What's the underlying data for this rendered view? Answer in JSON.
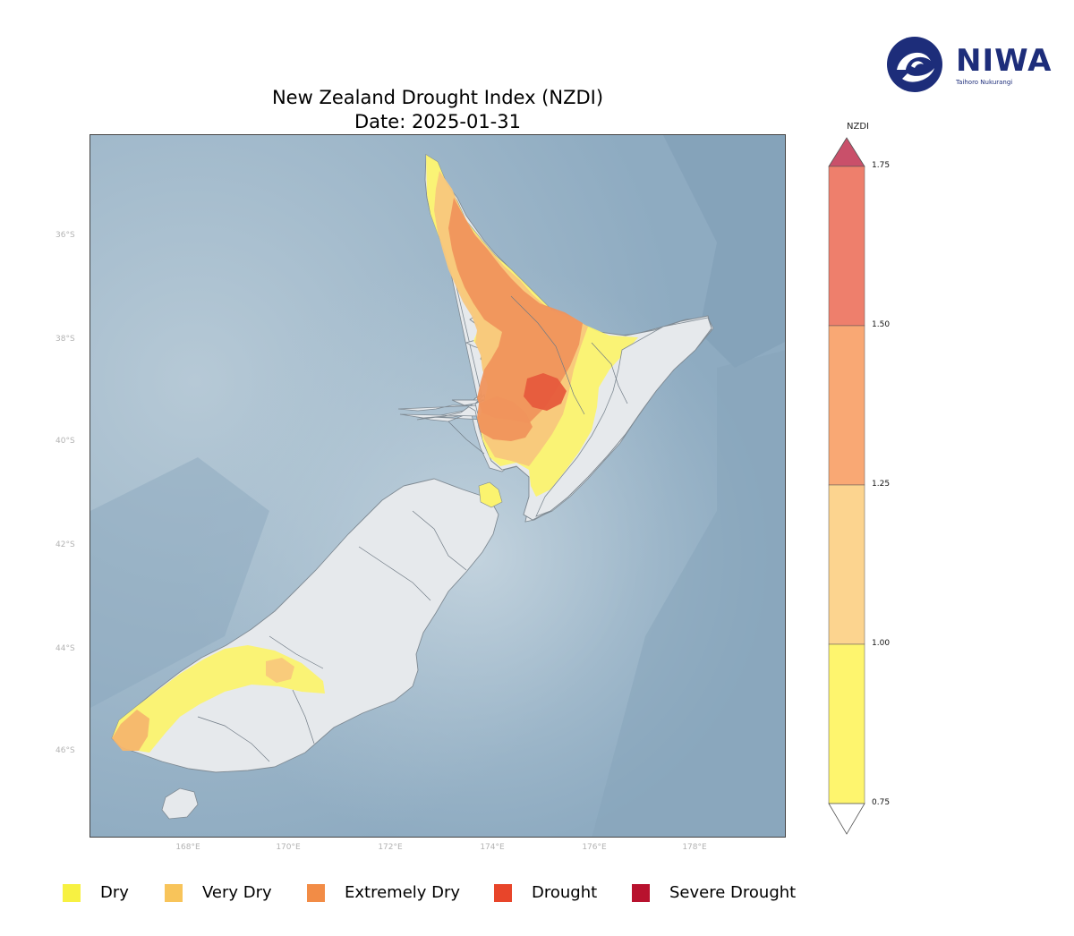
{
  "title": "New Zealand Drought Index (NZDI)",
  "subtitle": "Date: 2025-01-31",
  "logo": {
    "name": "NIWA",
    "tagline": "Taihoro Nukurangi"
  },
  "map": {
    "type": "choropleth",
    "region": "New Zealand",
    "lat_ticks": [
      "36°S",
      "38°S",
      "40°S",
      "42°S",
      "44°S",
      "46°S"
    ],
    "lon_ticks": [
      "168°E",
      "170°E",
      "172°E",
      "174°E",
      "176°E",
      "178°E"
    ],
    "ocean_color": "#9fb9cc",
    "land_color": "#e6e9ec"
  },
  "colorbar": {
    "title": "NZDI",
    "ticks": [
      "1.75",
      "1.50",
      "1.25",
      "1.00",
      "0.75"
    ],
    "bands": [
      {
        "from": 0.75,
        "to": 1.0,
        "color": "#fef56e"
      },
      {
        "from": 1.0,
        "to": 1.25,
        "color": "#fcd48f"
      },
      {
        "from": 1.25,
        "to": 1.5,
        "color": "#f9a874"
      },
      {
        "from": 1.5,
        "to": 1.75,
        "color": "#ee7f6c"
      }
    ],
    "over_color": "#c9506a",
    "under_color": "#ffffff"
  },
  "legend": [
    {
      "label": "Dry",
      "color": "#f7f142"
    },
    {
      "label": "Very Dry",
      "color": "#f8c45a"
    },
    {
      "label": "Extremely Dry",
      "color": "#f28c46"
    },
    {
      "label": "Drought",
      "color": "#e8452a"
    },
    {
      "label": "Severe Drought",
      "color": "#b8122e"
    }
  ]
}
